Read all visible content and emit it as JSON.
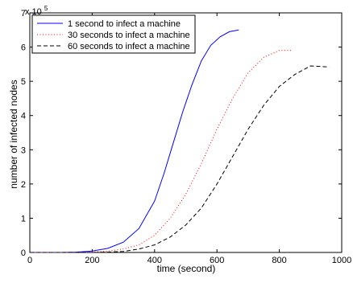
{
  "chart_data": {
    "type": "line",
    "title": "",
    "xlabel": "time (second)",
    "ylabel": "number of infected nodes",
    "exponent_label": "x 10",
    "exponent_power": "5",
    "xlim": [
      0,
      1000
    ],
    "ylim": [
      0,
      7
    ],
    "xticks": [
      0,
      200,
      400,
      600,
      800,
      1000
    ],
    "yticks": [
      0,
      1,
      2,
      3,
      4,
      5,
      6,
      7
    ],
    "grid": false,
    "legend_position": "top-left",
    "series": [
      {
        "name": "1 second to infect a machine",
        "color": "#0000ff",
        "dash": "solid",
        "points": [
          [
            0,
            0
          ],
          [
            100,
            0
          ],
          [
            150,
            0.01
          ],
          [
            200,
            0.04
          ],
          [
            250,
            0.12
          ],
          [
            300,
            0.3
          ],
          [
            350,
            0.7
          ],
          [
            400,
            1.5
          ],
          [
            430,
            2.3
          ],
          [
            460,
            3.2
          ],
          [
            490,
            4.1
          ],
          [
            520,
            4.9
          ],
          [
            550,
            5.6
          ],
          [
            580,
            6.05
          ],
          [
            610,
            6.3
          ],
          [
            640,
            6.45
          ],
          [
            670,
            6.5
          ]
        ]
      },
      {
        "name": "30 seconds to infect a machine",
        "color": "#ff0000",
        "dash": "dotted",
        "points": [
          [
            0,
            0
          ],
          [
            150,
            0
          ],
          [
            200,
            0.01
          ],
          [
            250,
            0.04
          ],
          [
            300,
            0.1
          ],
          [
            350,
            0.22
          ],
          [
            400,
            0.5
          ],
          [
            450,
            1.0
          ],
          [
            500,
            1.7
          ],
          [
            550,
            2.6
          ],
          [
            600,
            3.6
          ],
          [
            650,
            4.5
          ],
          [
            700,
            5.25
          ],
          [
            750,
            5.7
          ],
          [
            800,
            5.9
          ],
          [
            840,
            5.9
          ]
        ]
      },
      {
        "name": "60 seconds to infect a machine",
        "color": "#000000",
        "dash": "dashed",
        "points": [
          [
            0,
            0
          ],
          [
            200,
            0
          ],
          [
            250,
            0.01
          ],
          [
            300,
            0.03
          ],
          [
            350,
            0.1
          ],
          [
            400,
            0.22
          ],
          [
            450,
            0.45
          ],
          [
            500,
            0.8
          ],
          [
            550,
            1.3
          ],
          [
            600,
            2.0
          ],
          [
            650,
            2.8
          ],
          [
            700,
            3.6
          ],
          [
            750,
            4.3
          ],
          [
            800,
            4.85
          ],
          [
            850,
            5.2
          ],
          [
            900,
            5.45
          ],
          [
            960,
            5.42
          ]
        ]
      }
    ]
  }
}
